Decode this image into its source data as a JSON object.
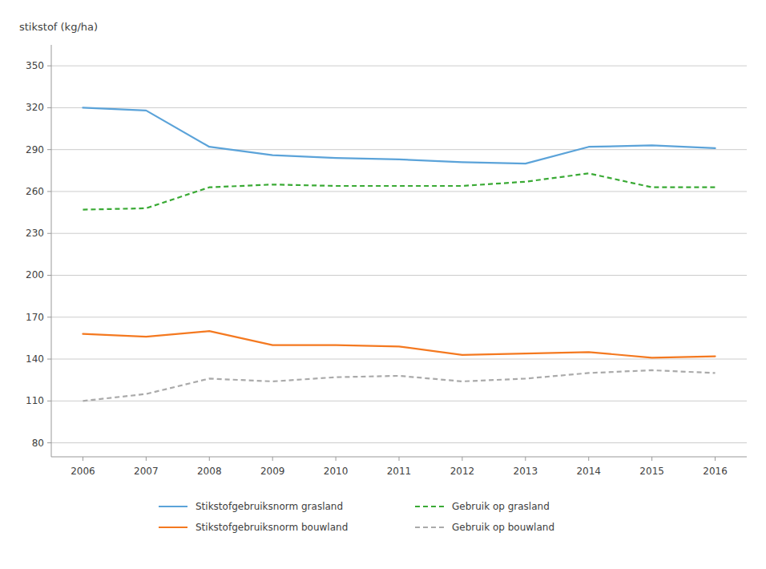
{
  "chart_data": {
    "type": "line",
    "y_label": "stikstof (kg/ha)",
    "x": [
      2006,
      2007,
      2008,
      2009,
      2010,
      2011,
      2012,
      2013,
      2014,
      2015,
      2016
    ],
    "xlim": [
      2005.5,
      2016.5
    ],
    "xticks": [
      2006,
      2007,
      2008,
      2009,
      2010,
      2011,
      2012,
      2013,
      2014,
      2015,
      2016
    ],
    "ylim": [
      70,
      365
    ],
    "yticks": [
      80,
      110,
      140,
      170,
      200,
      230,
      260,
      290,
      320,
      350
    ],
    "grid": true,
    "legend": "bottom",
    "series": [
      {
        "name": "Stikstofgebruiksnorm grasland",
        "color": "#5ba3d9",
        "line_style": "solid",
        "values": [
          320,
          318,
          292,
          286,
          284,
          283,
          281,
          280,
          292,
          293,
          291
        ]
      },
      {
        "name": "Gebruik op grasland",
        "color": "#3aaa35",
        "line_style": "dashed",
        "values": [
          247,
          248,
          263,
          265,
          264,
          264,
          264,
          267,
          273,
          263,
          263
        ]
      },
      {
        "name": "Stikstofgebruiksnorm bouwland",
        "color": "#f47920",
        "line_style": "solid",
        "values": [
          158,
          156,
          160,
          150,
          150,
          149,
          143,
          144,
          145,
          141,
          142
        ]
      },
      {
        "name": "Gebruik op bouwland",
        "color": "#aaaaaa",
        "line_style": "dashed",
        "values": [
          110,
          115,
          126,
          124,
          127,
          128,
          124,
          126,
          130,
          132,
          130
        ]
      }
    ]
  }
}
